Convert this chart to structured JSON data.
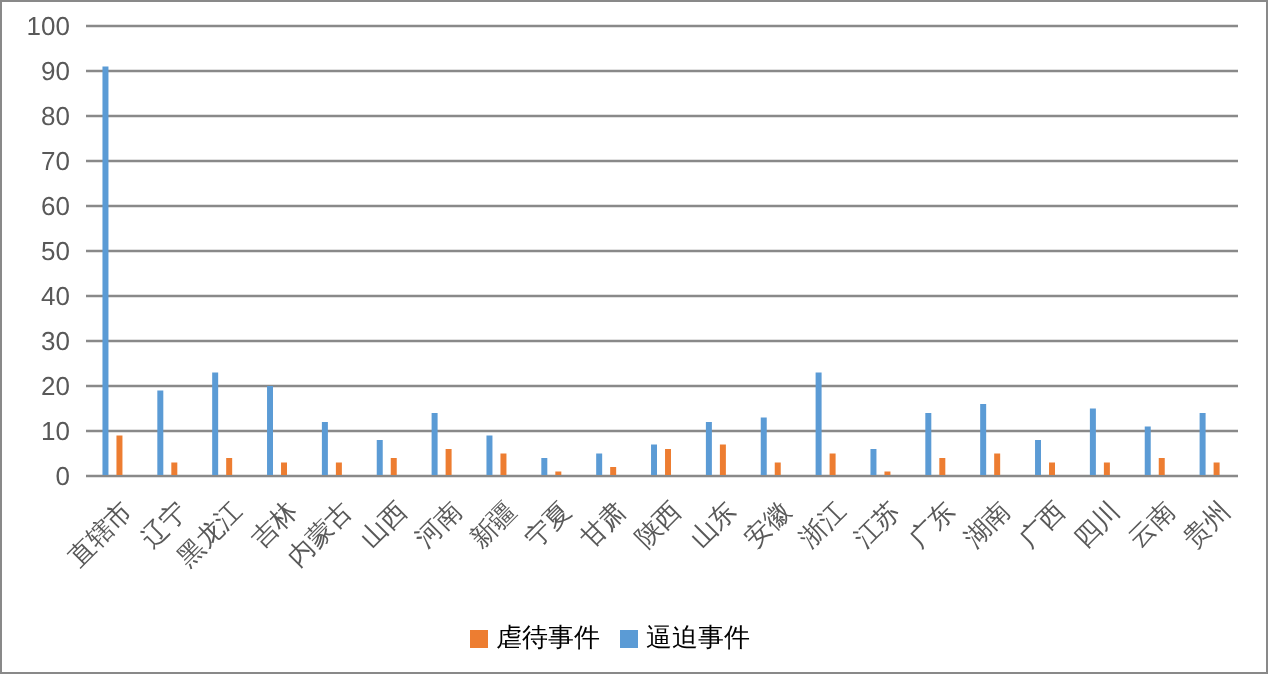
{
  "chart_data": {
    "type": "bar",
    "categories": [
      "直辖市",
      "辽宁",
      "黑龙江",
      "吉林",
      "内蒙古",
      "山西",
      "河南",
      "新疆",
      "宁夏",
      "甘肃",
      "陕西",
      "山东",
      "安徽",
      "浙江",
      "江苏",
      "广东",
      "湖南",
      "广西",
      "四川",
      "云南",
      "贵州"
    ],
    "series": [
      {
        "name": "逼迫事件",
        "color": "#5b9bd5",
        "values": [
          91,
          19,
          23,
          20,
          12,
          8,
          14,
          9,
          4,
          5,
          7,
          12,
          13,
          23,
          6,
          14,
          16,
          8,
          15,
          11,
          14
        ]
      },
      {
        "name": "虐待事件",
        "color": "#ed7d31",
        "values": [
          9,
          3,
          4,
          3,
          3,
          4,
          6,
          5,
          1,
          2,
          6,
          7,
          3,
          5,
          1,
          4,
          5,
          3,
          3,
          4,
          3
        ]
      }
    ],
    "ylim": [
      0,
      100
    ],
    "yticks": [
      0,
      10,
      20,
      30,
      40,
      50,
      60,
      70,
      80,
      90,
      100
    ],
    "grid": "y",
    "legend": "bottom"
  }
}
